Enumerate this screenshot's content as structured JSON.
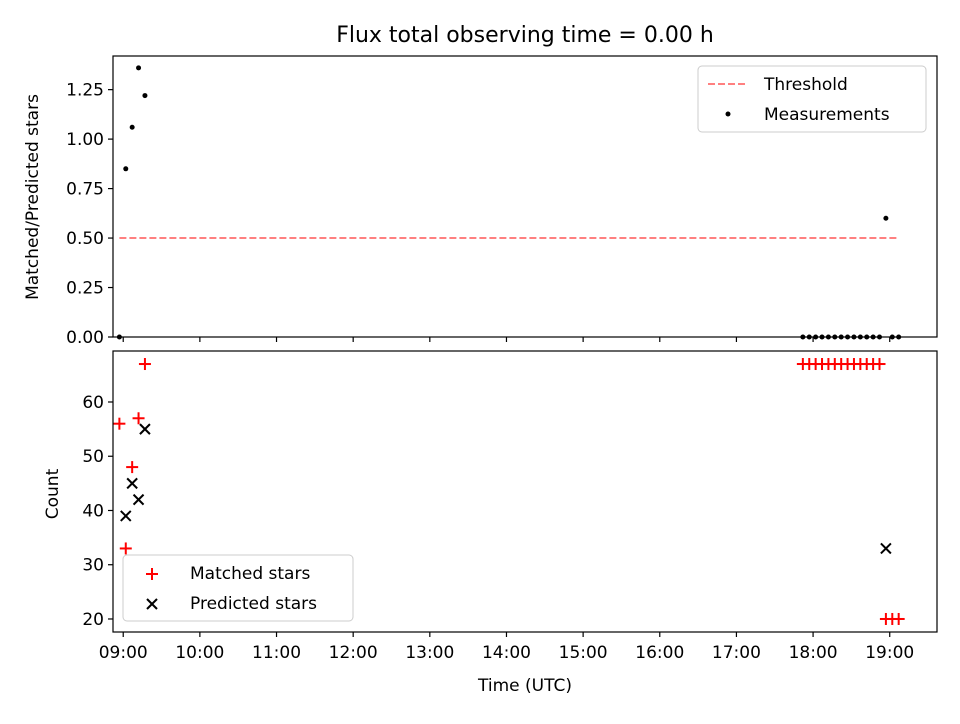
{
  "figure": {
    "title": "Flux total observing time = 0.00 h",
    "xlabel": "Time (UTC)"
  },
  "colors": {
    "threshold": "#ff8080",
    "measurements": "#000000",
    "matched": "#ff0000",
    "predicted": "#000000"
  },
  "chart_data": [
    {
      "type": "scatter",
      "panel": "top",
      "ylabel": "Matched/Predicted stars",
      "xlim": [
        "08:52",
        "19:37"
      ],
      "ylim": [
        0,
        1.42
      ],
      "x_ticks": [
        "09:00",
        "10:00",
        "11:00",
        "12:00",
        "13:00",
        "14:00",
        "15:00",
        "16:00",
        "17:00",
        "18:00",
        "19:00"
      ],
      "y_ticks": [
        "0.00",
        "0.25",
        "0.50",
        "0.75",
        "1.00",
        "1.25"
      ],
      "legend_position": "top-right",
      "threshold": {
        "name": "Threshold",
        "style": "dashed",
        "x": [
          "08:57",
          "19:07"
        ],
        "y": 0.5
      },
      "measurements": {
        "name": "Measurements",
        "points": [
          {
            "x": "08:57",
            "y": 0.0
          },
          {
            "x": "09:02",
            "y": 0.85
          },
          {
            "x": "09:07",
            "y": 1.06
          },
          {
            "x": "09:12",
            "y": 1.36
          },
          {
            "x": "09:17",
            "y": 1.22
          },
          {
            "x": "17:52",
            "y": 0.0
          },
          {
            "x": "17:57",
            "y": 0.0
          },
          {
            "x": "18:02",
            "y": 0.0
          },
          {
            "x": "18:07",
            "y": 0.0
          },
          {
            "x": "18:12",
            "y": 0.0
          },
          {
            "x": "18:17",
            "y": 0.0
          },
          {
            "x": "18:22",
            "y": 0.0
          },
          {
            "x": "18:27",
            "y": 0.0
          },
          {
            "x": "18:32",
            "y": 0.0
          },
          {
            "x": "18:37",
            "y": 0.0
          },
          {
            "x": "18:42",
            "y": 0.0
          },
          {
            "x": "18:47",
            "y": 0.0
          },
          {
            "x": "18:52",
            "y": 0.0
          },
          {
            "x": "18:57",
            "y": 0.6
          },
          {
            "x": "19:02",
            "y": 0.0
          },
          {
            "x": "19:07",
            "y": 0.0
          }
        ]
      }
    },
    {
      "type": "scatter",
      "panel": "bottom",
      "ylabel": "Count",
      "xlim": [
        "08:52",
        "19:37"
      ],
      "ylim": [
        17.6,
        69.4
      ],
      "x_ticks": [
        "09:00",
        "10:00",
        "11:00",
        "12:00",
        "13:00",
        "14:00",
        "15:00",
        "16:00",
        "17:00",
        "18:00",
        "19:00"
      ],
      "y_ticks": [
        "20",
        "30",
        "40",
        "50",
        "60"
      ],
      "legend_position": "bottom-left",
      "series": [
        {
          "name": "Matched stars",
          "marker": "plus",
          "points": [
            {
              "x": "08:57",
              "y": 56
            },
            {
              "x": "09:02",
              "y": 33
            },
            {
              "x": "09:07",
              "y": 48
            },
            {
              "x": "09:12",
              "y": 57
            },
            {
              "x": "09:17",
              "y": 67
            },
            {
              "x": "17:52",
              "y": 67
            },
            {
              "x": "17:57",
              "y": 67
            },
            {
              "x": "18:02",
              "y": 67
            },
            {
              "x": "18:07",
              "y": 67
            },
            {
              "x": "18:12",
              "y": 67
            },
            {
              "x": "18:17",
              "y": 67
            },
            {
              "x": "18:22",
              "y": 67
            },
            {
              "x": "18:27",
              "y": 67
            },
            {
              "x": "18:32",
              "y": 67
            },
            {
              "x": "18:37",
              "y": 67
            },
            {
              "x": "18:42",
              "y": 67
            },
            {
              "x": "18:47",
              "y": 67
            },
            {
              "x": "18:52",
              "y": 67
            },
            {
              "x": "18:57",
              "y": 20
            },
            {
              "x": "19:02",
              "y": 20
            },
            {
              "x": "19:07",
              "y": 20
            }
          ]
        },
        {
          "name": "Predicted stars",
          "marker": "x",
          "points": [
            {
              "x": "09:02",
              "y": 39
            },
            {
              "x": "09:07",
              "y": 45
            },
            {
              "x": "09:12",
              "y": 42
            },
            {
              "x": "09:17",
              "y": 55
            },
            {
              "x": "18:57",
              "y": 33
            }
          ]
        }
      ]
    }
  ]
}
